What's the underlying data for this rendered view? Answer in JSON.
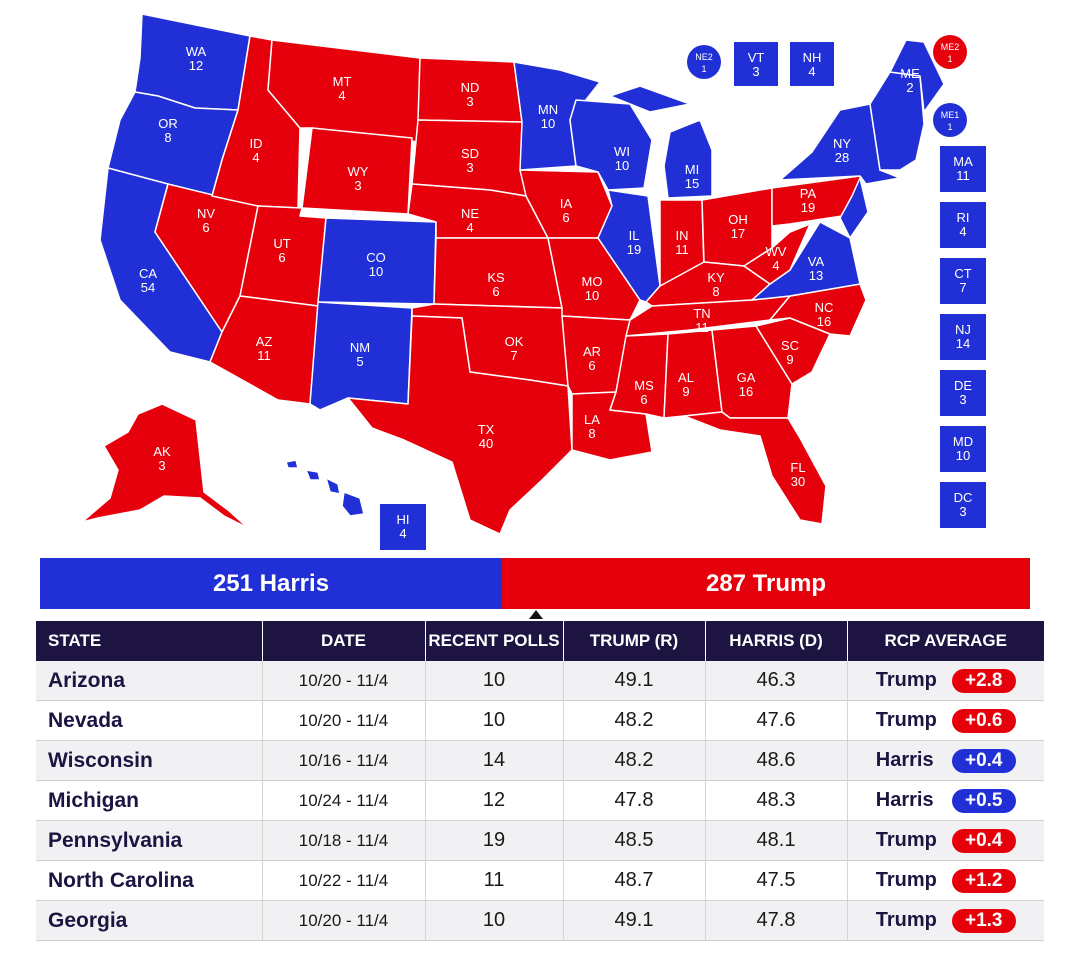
{
  "colors": {
    "harris": "#2130d6",
    "trump": "#e5000b",
    "header_bg": "#1d1442"
  },
  "map": {
    "states": [
      {
        "abbr": "WA",
        "ev": "12",
        "winner": "harris"
      },
      {
        "abbr": "OR",
        "ev": "8",
        "winner": "harris"
      },
      {
        "abbr": "CA",
        "ev": "54",
        "winner": "harris"
      },
      {
        "abbr": "NV",
        "ev": "6",
        "winner": "trump"
      },
      {
        "abbr": "ID",
        "ev": "4",
        "winner": "trump"
      },
      {
        "abbr": "MT",
        "ev": "4",
        "winner": "trump"
      },
      {
        "abbr": "WY",
        "ev": "3",
        "winner": "trump"
      },
      {
        "abbr": "UT",
        "ev": "6",
        "winner": "trump"
      },
      {
        "abbr": "AZ",
        "ev": "11",
        "winner": "trump"
      },
      {
        "abbr": "CO",
        "ev": "10",
        "winner": "harris"
      },
      {
        "abbr": "NM",
        "ev": "5",
        "winner": "harris"
      },
      {
        "abbr": "ND",
        "ev": "3",
        "winner": "trump"
      },
      {
        "abbr": "SD",
        "ev": "3",
        "winner": "trump"
      },
      {
        "abbr": "NE",
        "ev": "4",
        "winner": "trump"
      },
      {
        "abbr": "KS",
        "ev": "6",
        "winner": "trump"
      },
      {
        "abbr": "OK",
        "ev": "7",
        "winner": "trump"
      },
      {
        "abbr": "TX",
        "ev": "40",
        "winner": "trump"
      },
      {
        "abbr": "MN",
        "ev": "10",
        "winner": "harris"
      },
      {
        "abbr": "IA",
        "ev": "6",
        "winner": "trump"
      },
      {
        "abbr": "MO",
        "ev": "10",
        "winner": "trump"
      },
      {
        "abbr": "AR",
        "ev": "6",
        "winner": "trump"
      },
      {
        "abbr": "LA",
        "ev": "8",
        "winner": "trump"
      },
      {
        "abbr": "WI",
        "ev": "10",
        "winner": "harris"
      },
      {
        "abbr": "IL",
        "ev": "19",
        "winner": "harris"
      },
      {
        "abbr": "MI",
        "ev": "15",
        "winner": "harris"
      },
      {
        "abbr": "IN",
        "ev": "11",
        "winner": "trump"
      },
      {
        "abbr": "OH",
        "ev": "17",
        "winner": "trump"
      },
      {
        "abbr": "KY",
        "ev": "8",
        "winner": "trump"
      },
      {
        "abbr": "TN",
        "ev": "11",
        "winner": "trump"
      },
      {
        "abbr": "MS",
        "ev": "6",
        "winner": "trump"
      },
      {
        "abbr": "AL",
        "ev": "9",
        "winner": "trump"
      },
      {
        "abbr": "GA",
        "ev": "16",
        "winner": "trump"
      },
      {
        "abbr": "FL",
        "ev": "30",
        "winner": "trump"
      },
      {
        "abbr": "SC",
        "ev": "9",
        "winner": "trump"
      },
      {
        "abbr": "NC",
        "ev": "16",
        "winner": "trump"
      },
      {
        "abbr": "VA",
        "ev": "13",
        "winner": "harris"
      },
      {
        "abbr": "WV",
        "ev": "4",
        "winner": "trump"
      },
      {
        "abbr": "PA",
        "ev": "19",
        "winner": "trump"
      },
      {
        "abbr": "NY",
        "ev": "28",
        "winner": "harris"
      },
      {
        "abbr": "ME",
        "ev": "2",
        "winner": "harris"
      },
      {
        "abbr": "AK",
        "ev": "3",
        "winner": "trump"
      },
      {
        "abbr": "HI",
        "ev": "4",
        "winner": "harris"
      }
    ],
    "callouts": [
      {
        "abbr": "NE2",
        "ev": "1",
        "winner": "harris"
      },
      {
        "abbr": "VT",
        "ev": "3",
        "winner": "harris"
      },
      {
        "abbr": "NH",
        "ev": "4",
        "winner": "harris"
      },
      {
        "abbr": "ME2",
        "ev": "1",
        "winner": "trump"
      },
      {
        "abbr": "ME1",
        "ev": "1",
        "winner": "harris"
      },
      {
        "abbr": "MA",
        "ev": "11",
        "winner": "harris"
      },
      {
        "abbr": "RI",
        "ev": "4",
        "winner": "harris"
      },
      {
        "abbr": "CT",
        "ev": "7",
        "winner": "harris"
      },
      {
        "abbr": "NJ",
        "ev": "14",
        "winner": "harris"
      },
      {
        "abbr": "DE",
        "ev": "3",
        "winner": "harris"
      },
      {
        "abbr": "MD",
        "ev": "10",
        "winner": "harris"
      },
      {
        "abbr": "DC",
        "ev": "3",
        "winner": "harris"
      }
    ]
  },
  "totals": {
    "harris_label": "251 Harris",
    "trump_label": "287 Trump",
    "harris": 251,
    "trump": 287
  },
  "table": {
    "headers": [
      "STATE",
      "DATE",
      "RECENT POLLS",
      "TRUMP (R)",
      "HARRIS (D)",
      "RCP AVERAGE"
    ],
    "rows": [
      {
        "state": "Arizona",
        "date": "10/20 - 11/4",
        "polls": "10",
        "trump": "49.1",
        "harris": "46.3",
        "leader": "Trump",
        "spread": "+2.8",
        "party": "r"
      },
      {
        "state": "Nevada",
        "date": "10/20 - 11/4",
        "polls": "10",
        "trump": "48.2",
        "harris": "47.6",
        "leader": "Trump",
        "spread": "+0.6",
        "party": "r"
      },
      {
        "state": "Wisconsin",
        "date": "10/16 - 11/4",
        "polls": "14",
        "trump": "48.2",
        "harris": "48.6",
        "leader": "Harris",
        "spread": "+0.4",
        "party": "d"
      },
      {
        "state": "Michigan",
        "date": "10/24 - 11/4",
        "polls": "12",
        "trump": "47.8",
        "harris": "48.3",
        "leader": "Harris",
        "spread": "+0.5",
        "party": "d"
      },
      {
        "state": "Pennsylvania",
        "date": "10/18 - 11/4",
        "polls": "19",
        "trump": "48.5",
        "harris": "48.1",
        "leader": "Trump",
        "spread": "+0.4",
        "party": "r"
      },
      {
        "state": "North Carolina",
        "date": "10/22 - 11/4",
        "polls": "11",
        "trump": "48.7",
        "harris": "47.5",
        "leader": "Trump",
        "spread": "+1.2",
        "party": "r"
      },
      {
        "state": "Georgia",
        "date": "10/20 - 11/4",
        "polls": "10",
        "trump": "49.1",
        "harris": "47.8",
        "leader": "Trump",
        "spread": "+1.3",
        "party": "r"
      }
    ]
  }
}
